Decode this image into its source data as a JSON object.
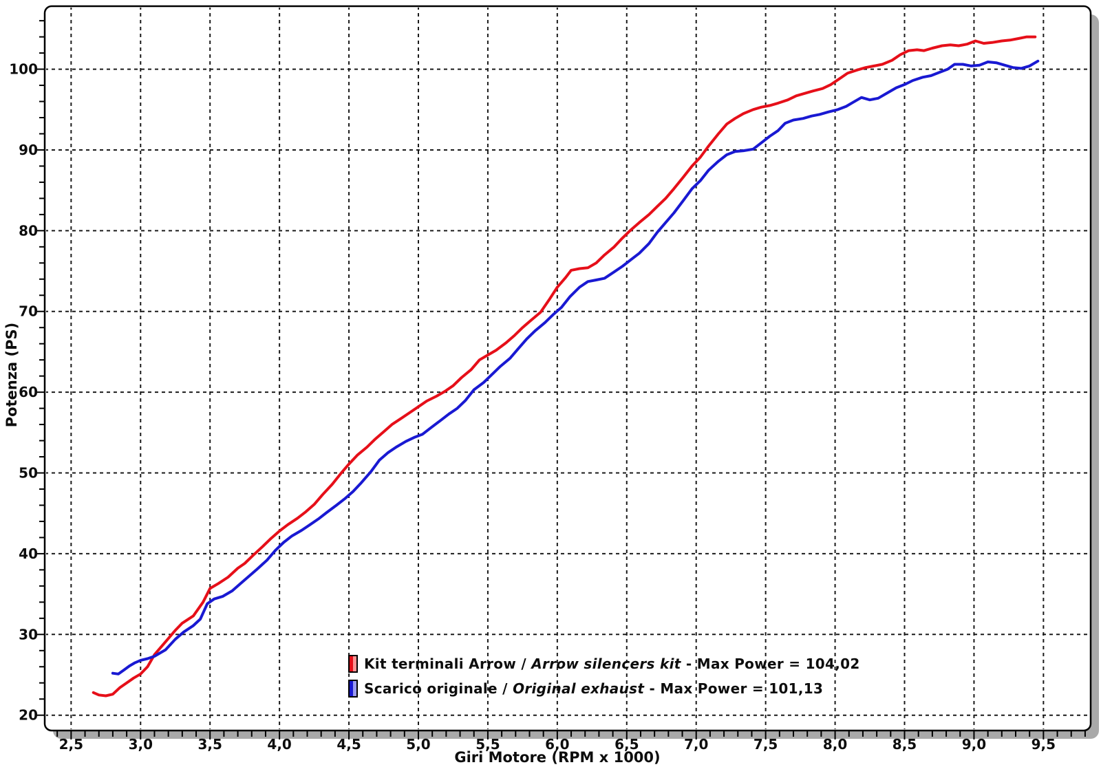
{
  "page": {
    "background": "#ffffff"
  },
  "chart_data": {
    "type": "line",
    "title": "",
    "xlabel": "Giri Motore (RPM x 1000)",
    "ylabel": "Potenza (PS)",
    "xlim": [
      2.31,
      9.84
    ],
    "ylim": [
      18.1,
      107.8
    ],
    "grid": "major-dashed-black",
    "legend_position": "inside-bottom-center",
    "x_major_ticks": [
      {
        "value": 2.5,
        "label": "2,5"
      },
      {
        "value": 3.0,
        "label": "3,0"
      },
      {
        "value": 3.5,
        "label": "3,5"
      },
      {
        "value": 4.0,
        "label": "4,0"
      },
      {
        "value": 4.5,
        "label": "4,5"
      },
      {
        "value": 5.0,
        "label": "5,0"
      },
      {
        "value": 5.5,
        "label": "5,5"
      },
      {
        "value": 6.0,
        "label": "6,0"
      },
      {
        "value": 6.5,
        "label": "6,5"
      },
      {
        "value": 7.0,
        "label": "7,0"
      },
      {
        "value": 7.5,
        "label": "7,5"
      },
      {
        "value": 8.0,
        "label": "8,0"
      },
      {
        "value": 8.5,
        "label": "8,5"
      },
      {
        "value": 9.0,
        "label": "9,0"
      },
      {
        "value": 9.5,
        "label": "9,5"
      }
    ],
    "x_minor_step": 0.1,
    "y_major_ticks": [
      {
        "value": 20,
        "label": "20"
      },
      {
        "value": 30,
        "label": "30"
      },
      {
        "value": 40,
        "label": "40"
      },
      {
        "value": 50,
        "label": "50"
      },
      {
        "value": 60,
        "label": "60"
      },
      {
        "value": 70,
        "label": "70"
      },
      {
        "value": 80,
        "label": "80"
      },
      {
        "value": 90,
        "label": "90"
      },
      {
        "value": 100,
        "label": "100"
      }
    ],
    "y_minor_step": 2,
    "colors": {
      "grid": "#1a1a1a",
      "border": "#000000",
      "shadow": "#a9a9a9",
      "text": "#0d0d0d",
      "plot_background": "#ffffff"
    },
    "series": [
      {
        "name": "Kit terminali Arrow / Arrow silencers kit",
        "max_power": "104,02",
        "color": "#e60f19",
        "color_light": "#fa9393",
        "points": [
          [
            2.66,
            22.8
          ],
          [
            2.7,
            22.5
          ],
          [
            2.75,
            22.4
          ],
          [
            2.8,
            22.6
          ],
          [
            2.85,
            23.4
          ],
          [
            2.9,
            24.0
          ],
          [
            2.95,
            24.6
          ],
          [
            3.0,
            25.1
          ],
          [
            3.05,
            26.0
          ],
          [
            3.1,
            27.5
          ],
          [
            3.18,
            29.1
          ],
          [
            3.25,
            30.5
          ],
          [
            3.3,
            31.4
          ],
          [
            3.38,
            32.3
          ],
          [
            3.45,
            34.0
          ],
          [
            3.5,
            35.7
          ],
          [
            3.56,
            36.3
          ],
          [
            3.63,
            37.1
          ],
          [
            3.7,
            38.2
          ],
          [
            3.75,
            38.8
          ],
          [
            3.81,
            39.8
          ],
          [
            3.88,
            40.9
          ],
          [
            3.94,
            41.9
          ],
          [
            4.0,
            42.8
          ],
          [
            4.06,
            43.6
          ],
          [
            4.13,
            44.4
          ],
          [
            4.19,
            45.2
          ],
          [
            4.25,
            46.1
          ],
          [
            4.31,
            47.3
          ],
          [
            4.38,
            48.6
          ],
          [
            4.44,
            49.9
          ],
          [
            4.5,
            51.1
          ],
          [
            4.56,
            52.2
          ],
          [
            4.63,
            53.2
          ],
          [
            4.69,
            54.2
          ],
          [
            4.75,
            55.1
          ],
          [
            4.81,
            56.0
          ],
          [
            4.88,
            56.8
          ],
          [
            4.94,
            57.5
          ],
          [
            5.0,
            58.2
          ],
          [
            5.06,
            58.9
          ],
          [
            5.13,
            59.5
          ],
          [
            5.19,
            60.1
          ],
          [
            5.25,
            60.8
          ],
          [
            5.31,
            61.8
          ],
          [
            5.38,
            62.8
          ],
          [
            5.44,
            64.0
          ],
          [
            5.5,
            64.6
          ],
          [
            5.56,
            65.2
          ],
          [
            5.63,
            66.1
          ],
          [
            5.69,
            67.0
          ],
          [
            5.75,
            68.0
          ],
          [
            5.81,
            68.9
          ],
          [
            5.88,
            69.9
          ],
          [
            5.94,
            71.4
          ],
          [
            6.0,
            73.0
          ],
          [
            6.06,
            74.2
          ],
          [
            6.1,
            75.1
          ],
          [
            6.16,
            75.3
          ],
          [
            6.22,
            75.4
          ],
          [
            6.28,
            76.0
          ],
          [
            6.34,
            77.0
          ],
          [
            6.41,
            78.0
          ],
          [
            6.47,
            79.1
          ],
          [
            6.53,
            80.1
          ],
          [
            6.59,
            81.0
          ],
          [
            6.66,
            82.0
          ],
          [
            6.72,
            83.0
          ],
          [
            6.78,
            84.0
          ],
          [
            6.84,
            85.2
          ],
          [
            6.91,
            86.7
          ],
          [
            6.97,
            88.0
          ],
          [
            7.03,
            89.1
          ],
          [
            7.09,
            90.5
          ],
          [
            7.16,
            92.0
          ],
          [
            7.22,
            93.2
          ],
          [
            7.28,
            93.9
          ],
          [
            7.34,
            94.5
          ],
          [
            7.41,
            95.0
          ],
          [
            7.47,
            95.3
          ],
          [
            7.53,
            95.5
          ],
          [
            7.59,
            95.8
          ],
          [
            7.66,
            96.2
          ],
          [
            7.72,
            96.7
          ],
          [
            7.78,
            97.0
          ],
          [
            7.84,
            97.3
          ],
          [
            7.91,
            97.6
          ],
          [
            7.97,
            98.1
          ],
          [
            8.03,
            98.8
          ],
          [
            8.09,
            99.5
          ],
          [
            8.16,
            99.9
          ],
          [
            8.22,
            100.2
          ],
          [
            8.28,
            100.4
          ],
          [
            8.34,
            100.6
          ],
          [
            8.41,
            101.1
          ],
          [
            8.47,
            101.8
          ],
          [
            8.53,
            102.3
          ],
          [
            8.59,
            102.4
          ],
          [
            8.64,
            102.3
          ],
          [
            8.7,
            102.6
          ],
          [
            8.77,
            102.9
          ],
          [
            8.83,
            103.0
          ],
          [
            8.89,
            102.9
          ],
          [
            8.95,
            103.1
          ],
          [
            9.01,
            103.5
          ],
          [
            9.07,
            103.2
          ],
          [
            9.13,
            103.3
          ],
          [
            9.2,
            103.5
          ],
          [
            9.26,
            103.6
          ],
          [
            9.32,
            103.8
          ],
          [
            9.38,
            104.0
          ],
          [
            9.44,
            104.0
          ]
        ]
      },
      {
        "name": "Scarico originale / Original exhaust",
        "max_power": "101,13",
        "color": "#1919d2",
        "color_light": "#9a9af0",
        "points": [
          [
            2.8,
            25.2
          ],
          [
            2.84,
            25.1
          ],
          [
            2.88,
            25.6
          ],
          [
            2.92,
            26.1
          ],
          [
            2.96,
            26.5
          ],
          [
            3.0,
            26.8
          ],
          [
            3.05,
            27.0
          ],
          [
            3.1,
            27.3
          ],
          [
            3.18,
            28.1
          ],
          [
            3.25,
            29.4
          ],
          [
            3.31,
            30.3
          ],
          [
            3.38,
            31.1
          ],
          [
            3.43,
            31.9
          ],
          [
            3.48,
            33.8
          ],
          [
            3.53,
            34.4
          ],
          [
            3.59,
            34.7
          ],
          [
            3.66,
            35.4
          ],
          [
            3.72,
            36.3
          ],
          [
            3.78,
            37.2
          ],
          [
            3.84,
            38.1
          ],
          [
            3.91,
            39.2
          ],
          [
            3.97,
            40.4
          ],
          [
            4.03,
            41.4
          ],
          [
            4.09,
            42.2
          ],
          [
            4.16,
            42.9
          ],
          [
            4.22,
            43.6
          ],
          [
            4.28,
            44.3
          ],
          [
            4.34,
            45.1
          ],
          [
            4.41,
            46.0
          ],
          [
            4.47,
            46.8
          ],
          [
            4.53,
            47.7
          ],
          [
            4.59,
            48.8
          ],
          [
            4.66,
            50.2
          ],
          [
            4.72,
            51.6
          ],
          [
            4.78,
            52.5
          ],
          [
            4.84,
            53.2
          ],
          [
            4.91,
            53.9
          ],
          [
            4.97,
            54.4
          ],
          [
            5.03,
            54.8
          ],
          [
            5.09,
            55.6
          ],
          [
            5.16,
            56.5
          ],
          [
            5.22,
            57.3
          ],
          [
            5.28,
            58.0
          ],
          [
            5.34,
            59.0
          ],
          [
            5.4,
            60.3
          ],
          [
            5.47,
            61.2
          ],
          [
            5.53,
            62.2
          ],
          [
            5.59,
            63.2
          ],
          [
            5.66,
            64.2
          ],
          [
            5.72,
            65.4
          ],
          [
            5.78,
            66.6
          ],
          [
            5.84,
            67.6
          ],
          [
            5.91,
            68.6
          ],
          [
            5.97,
            69.6
          ],
          [
            6.03,
            70.5
          ],
          [
            6.09,
            71.8
          ],
          [
            6.16,
            73.0
          ],
          [
            6.22,
            73.7
          ],
          [
            6.28,
            73.9
          ],
          [
            6.34,
            74.1
          ],
          [
            6.41,
            74.9
          ],
          [
            6.47,
            75.6
          ],
          [
            6.53,
            76.4
          ],
          [
            6.59,
            77.2
          ],
          [
            6.66,
            78.4
          ],
          [
            6.72,
            79.8
          ],
          [
            6.78,
            81.0
          ],
          [
            6.84,
            82.2
          ],
          [
            6.91,
            83.8
          ],
          [
            6.97,
            85.2
          ],
          [
            7.03,
            86.2
          ],
          [
            7.09,
            87.5
          ],
          [
            7.16,
            88.6
          ],
          [
            7.22,
            89.4
          ],
          [
            7.28,
            89.8
          ],
          [
            7.34,
            89.9
          ],
          [
            7.41,
            90.1
          ],
          [
            7.47,
            90.9
          ],
          [
            7.53,
            91.7
          ],
          [
            7.59,
            92.4
          ],
          [
            7.64,
            93.3
          ],
          [
            7.7,
            93.7
          ],
          [
            7.77,
            93.9
          ],
          [
            7.83,
            94.2
          ],
          [
            7.89,
            94.4
          ],
          [
            7.95,
            94.7
          ],
          [
            8.02,
            95.0
          ],
          [
            8.08,
            95.4
          ],
          [
            8.13,
            95.9
          ],
          [
            8.19,
            96.5
          ],
          [
            8.25,
            96.2
          ],
          [
            8.31,
            96.4
          ],
          [
            8.38,
            97.1
          ],
          [
            8.44,
            97.7
          ],
          [
            8.5,
            98.1
          ],
          [
            8.56,
            98.6
          ],
          [
            8.63,
            99.0
          ],
          [
            8.69,
            99.2
          ],
          [
            8.75,
            99.6
          ],
          [
            8.81,
            100.0
          ],
          [
            8.86,
            100.6
          ],
          [
            8.92,
            100.6
          ],
          [
            8.98,
            100.4
          ],
          [
            9.04,
            100.5
          ],
          [
            9.1,
            100.9
          ],
          [
            9.16,
            100.8
          ],
          [
            9.22,
            100.5
          ],
          [
            9.28,
            100.2
          ],
          [
            9.34,
            100.1
          ],
          [
            9.4,
            100.4
          ],
          [
            9.46,
            101.0
          ]
        ]
      }
    ],
    "legend": [
      {
        "pre": "Kit terminali Arrow / ",
        "italic": "Arrow silencers kit",
        "post": " - Max Power = 104,02"
      },
      {
        "pre": "Scarico originale / ",
        "italic": "Original exhaust",
        "post": " - Max Power = 101,13"
      }
    ]
  }
}
